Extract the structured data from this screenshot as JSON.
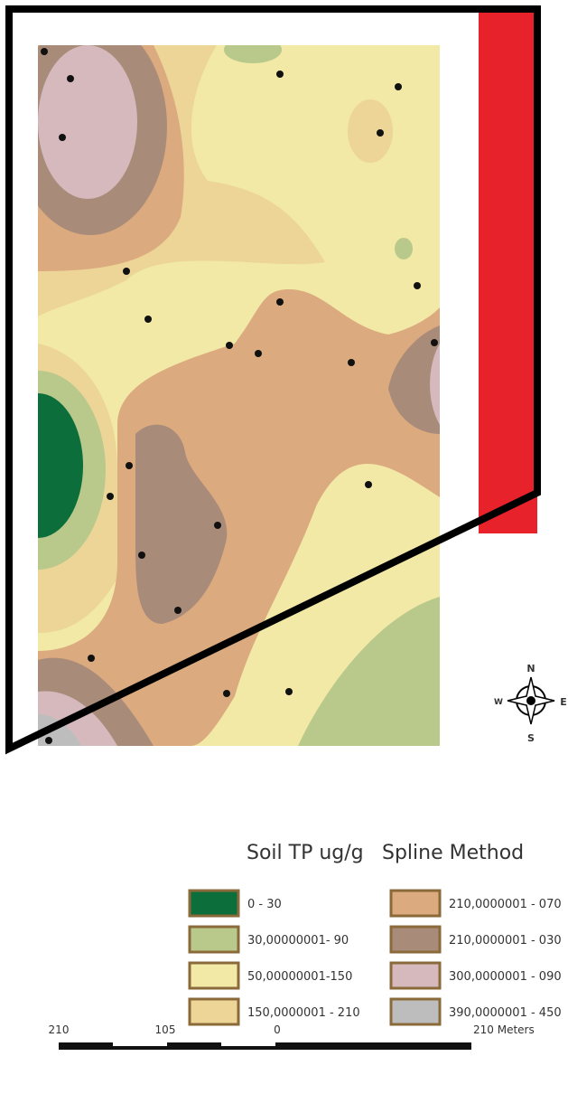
{
  "legend": {
    "title": "Soil TP ug/g",
    "subtitle": "Spline Method",
    "items": [
      {
        "label": "0 - 30",
        "color": "#0b6e3b"
      },
      {
        "label": "30,00000001- 90",
        "color": "#b9c98b"
      },
      {
        "label": "50,00000001-150",
        "color": "#f2e9a6"
      },
      {
        "label": "150,0000001 - 210",
        "color": "#ecd597"
      },
      {
        "label": "210,0000001 - 070",
        "color": "#dcaa7f"
      },
      {
        "label": "210,0000001 - 030",
        "color": "#a98b7a"
      },
      {
        "label": "300,0000001 - 090",
        "color": "#d5b9bd"
      },
      {
        "label": "390,0000001 - 450",
        "color": "#bdbdbd"
      }
    ]
  },
  "scale_bar": {
    "labels": [
      "210",
      "105",
      "0",
      "210 Meters"
    ]
  },
  "compass": {
    "n": "N",
    "s": "S",
    "w": "W",
    "e": "E"
  }
}
